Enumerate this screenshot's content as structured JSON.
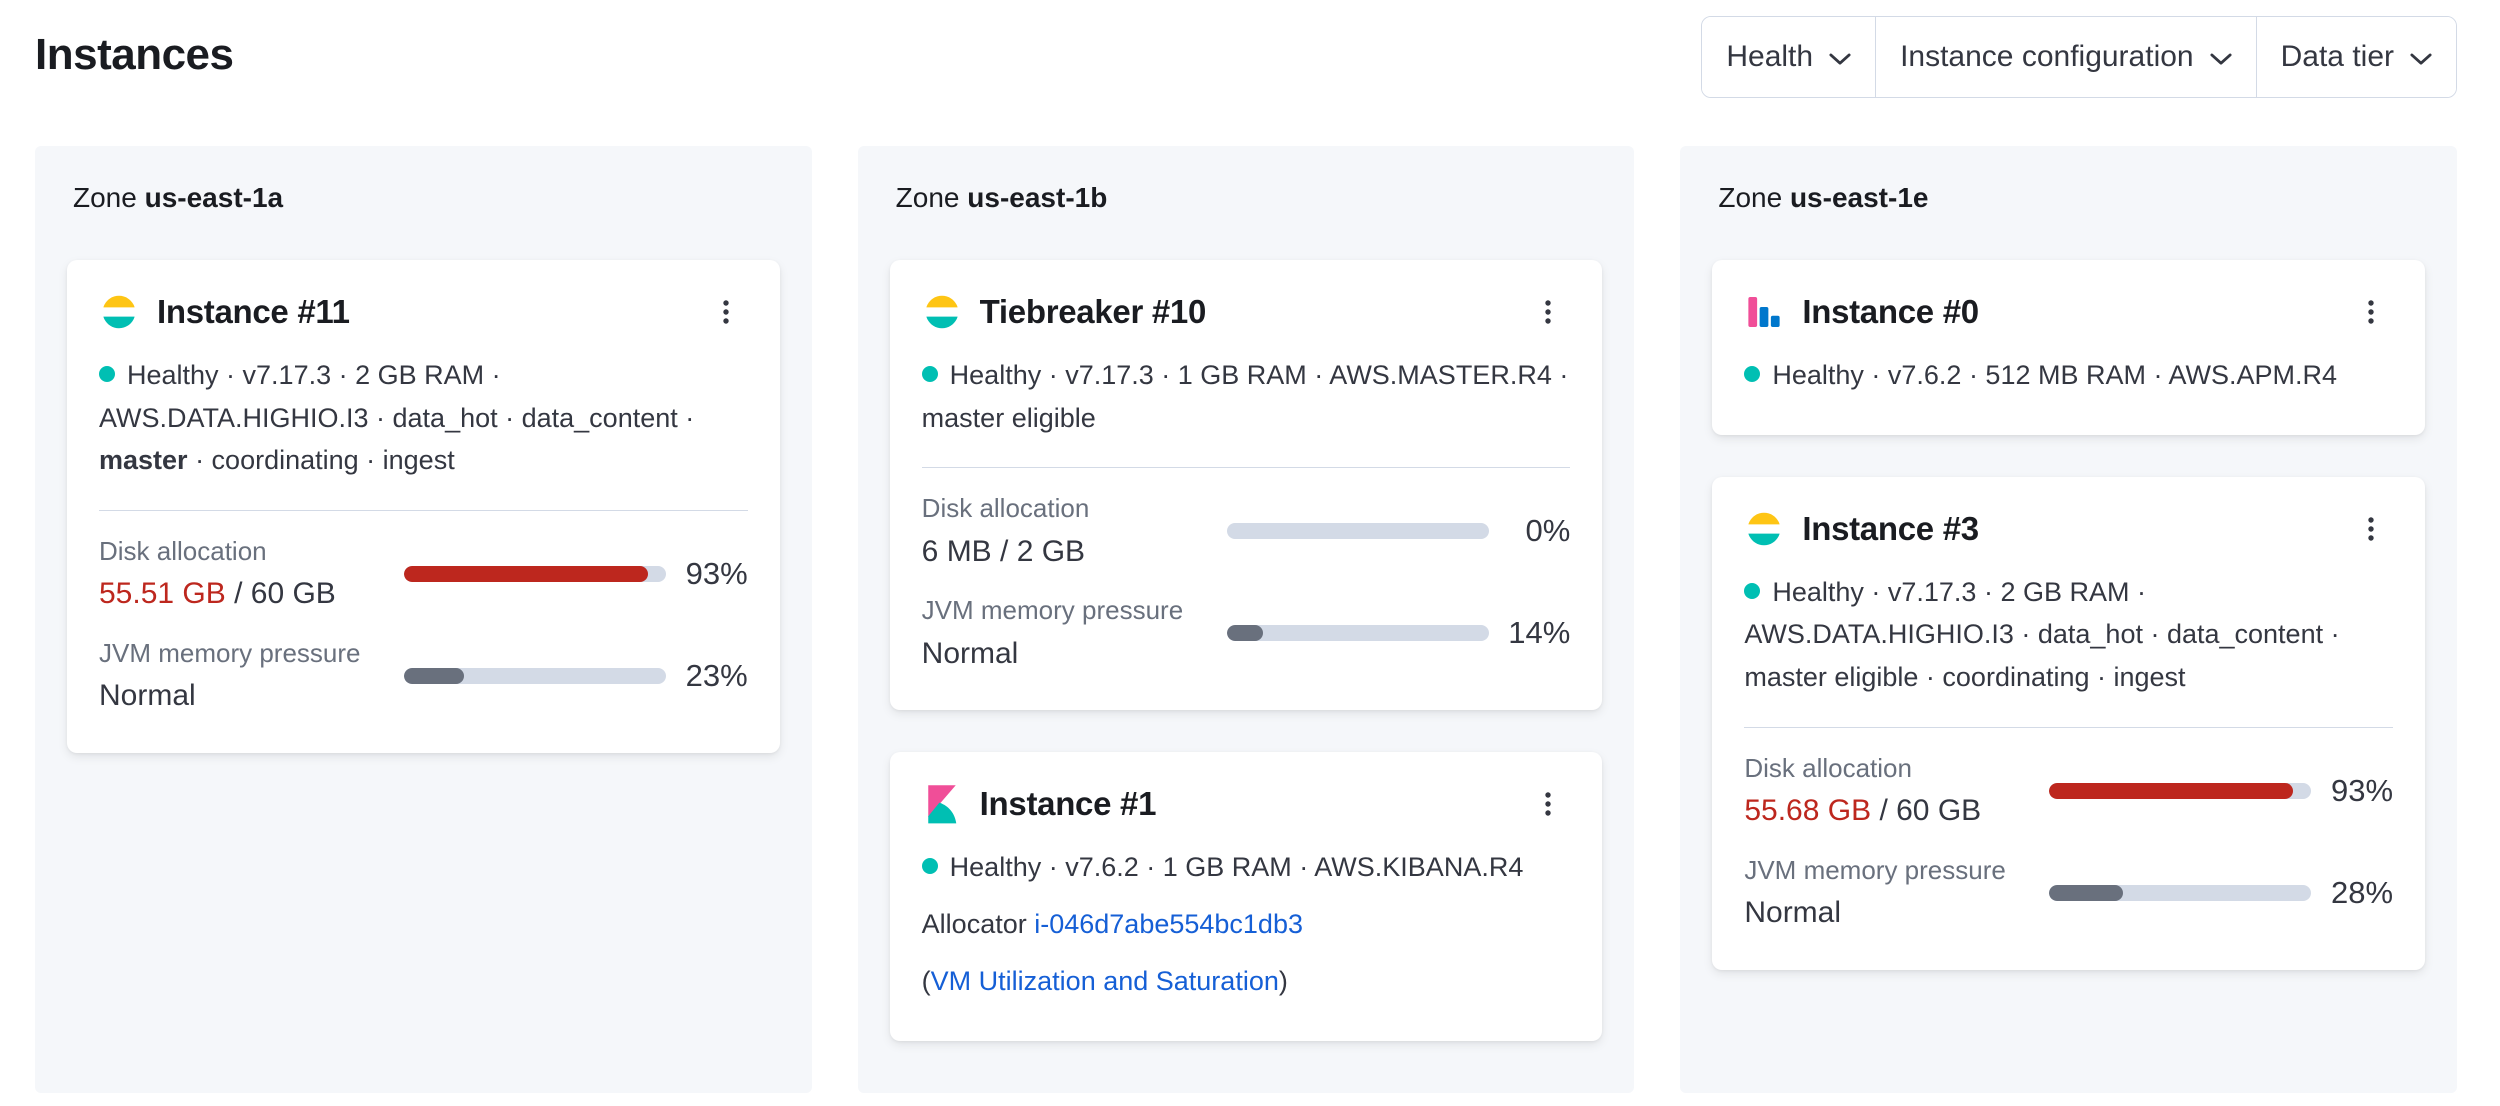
{
  "page_title": "Instances",
  "filters": {
    "health": "Health",
    "instance_configuration": "Instance configuration",
    "data_tier": "Data tier"
  },
  "zones": {
    "a": {
      "prefix": "Zone",
      "name": "us-east-1a"
    },
    "b": {
      "prefix": "Zone",
      "name": "us-east-1b"
    },
    "e": {
      "prefix": "Zone",
      "name": "us-east-1e"
    }
  },
  "cards": {
    "instance_11": {
      "icon": "elasticsearch-icon",
      "title": "Instance #11",
      "meta_1": "Healthy · v7.17.3 · 2 GB RAM · AWS.DATA.HIGHIO.I3 · data_hot · data_content · ",
      "meta_bold": "master",
      "meta_2": " · coordinating · ingest",
      "disk_label": "Disk allocation",
      "disk_used": "55.51 GB",
      "disk_total": " / 60 GB",
      "disk_percent": "93%",
      "disk_fill": 93,
      "jvm_label": "JVM memory pressure",
      "jvm_value": "Normal",
      "jvm_percent": "23%",
      "jvm_fill": 23
    },
    "tiebreaker_10": {
      "icon": "elasticsearch-icon",
      "title": "Tiebreaker #10",
      "meta": "Healthy · v7.17.3 · 1 GB RAM · AWS.MASTER.R4 · master eligible",
      "disk_label": "Disk allocation",
      "disk_value": "6 MB / 2 GB",
      "disk_percent": "0%",
      "disk_fill": 0,
      "jvm_label": "JVM memory pressure",
      "jvm_value": "Normal",
      "jvm_percent": "14%",
      "jvm_fill": 14
    },
    "instance_1": {
      "icon": "kibana-icon",
      "title": "Instance #1",
      "meta": "Healthy · v7.6.2 · 1 GB RAM · AWS.KIBANA.R4",
      "allocator_label": "Allocator ",
      "allocator_link": "i-046d7abe554bc1db3",
      "vm_open_paren": "(",
      "vm_link": "VM Utilization and Saturation",
      "vm_close_paren": ")"
    },
    "instance_0": {
      "icon": "apm-icon",
      "title": "Instance #0",
      "meta": "Healthy · v7.6.2 · 512 MB RAM · AWS.APM.R4"
    },
    "instance_3": {
      "icon": "elasticsearch-icon",
      "title": "Instance #3",
      "meta": "Healthy · v7.17.3 · 2 GB RAM · AWS.DATA.HIGHIO.I3 · data_hot · data_content · master eligible · coordinating · ingest",
      "disk_label": "Disk allocation",
      "disk_used": "55.68 GB",
      "disk_total": " / 60 GB",
      "disk_percent": "93%",
      "disk_fill": 93,
      "jvm_label": "JVM memory pressure",
      "jvm_value": "Normal",
      "jvm_percent": "28%",
      "jvm_fill": 28
    }
  },
  "colors": {
    "danger": "#bd271e",
    "healthy_dot": "#00bfb3",
    "link": "#155fd6",
    "bar_track": "#d3dae6",
    "jvm_bar_fill": "#69707d",
    "zone_panel": "#f5f7fa",
    "es_icon_yellow": "#fec514",
    "es_icon_teal": "#00bfb3",
    "kibana_pink": "#f04e98",
    "apm_blue": "#0077cc"
  }
}
